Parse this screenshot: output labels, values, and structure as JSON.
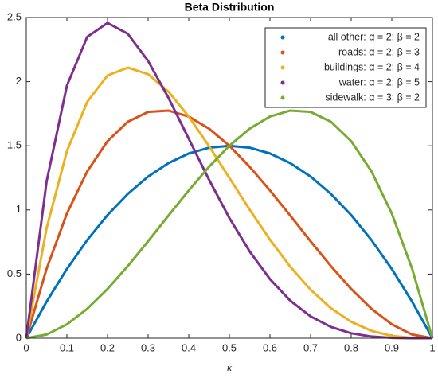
{
  "chart_data": {
    "type": "line",
    "title": "Beta Distribution",
    "x_label": "κ",
    "x": [
      0,
      0.05,
      0.1,
      0.15,
      0.2,
      0.25,
      0.3,
      0.35,
      0.4,
      0.45,
      0.5,
      0.55,
      0.6,
      0.65,
      0.7,
      0.75,
      0.8,
      0.85,
      0.9,
      0.95,
      1
    ],
    "series": [
      {
        "name": "all other: α = 2: β = 2",
        "color": "#0072bd",
        "values": [
          0,
          0.285,
          0.54,
          0.765,
          0.96,
          1.125,
          1.26,
          1.365,
          1.44,
          1.485,
          1.5,
          1.485,
          1.44,
          1.365,
          1.26,
          1.125,
          0.96,
          0.765,
          0.54,
          0.285,
          0
        ]
      },
      {
        "name": "roads: α = 2: β = 3",
        "color": "#d95319",
        "values": [
          0,
          0.5415,
          0.972,
          1.3005,
          1.536,
          1.6875,
          1.764,
          1.7745,
          1.728,
          1.6335,
          1.5,
          1.3365,
          1.152,
          0.9555,
          0.756,
          0.5625,
          0.384,
          0.2295,
          0.108,
          0.0285,
          0
        ]
      },
      {
        "name": "buildings: α = 2: β = 4",
        "color": "#edb120",
        "values": [
          0,
          0.8574,
          1.458,
          1.8424,
          2.048,
          2.1094,
          2.058,
          1.9224,
          1.728,
          1.4974,
          1.25,
          1.0024,
          0.768,
          0.5574,
          0.378,
          0.2344,
          0.128,
          0.0574,
          0.018,
          0.0024,
          0
        ]
      },
      {
        "name": "water: α = 2: β = 5",
        "color": "#7e2f8e",
        "values": [
          0,
          1.2218,
          1.9683,
          2.349,
          2.4576,
          2.373,
          2.1609,
          1.8743,
          1.5552,
          1.2353,
          0.9375,
          0.6766,
          0.4608,
          0.2926,
          0.1701,
          0.0879,
          0.0384,
          0.0129,
          0.0027,
          0.0002,
          0
        ]
      },
      {
        "name": "sidewalk: α = 3: β = 2",
        "color": "#77ac30",
        "values": [
          0,
          0.0285,
          0.108,
          0.2295,
          0.384,
          0.5625,
          0.756,
          0.9555,
          1.152,
          1.3365,
          1.5,
          1.6335,
          1.728,
          1.7745,
          1.764,
          1.6875,
          1.536,
          1.3005,
          0.972,
          0.5415,
          0
        ]
      }
    ],
    "xlim": [
      0,
      1
    ],
    "xticks": [
      0,
      0.1,
      0.2,
      0.3,
      0.4,
      0.5,
      0.6,
      0.7,
      0.8,
      0.9,
      1
    ],
    "ylim": [
      0,
      2.5
    ],
    "yticks": [
      0,
      0.5,
      1,
      1.5,
      2,
      2.5
    ],
    "legend": "top-right"
  }
}
